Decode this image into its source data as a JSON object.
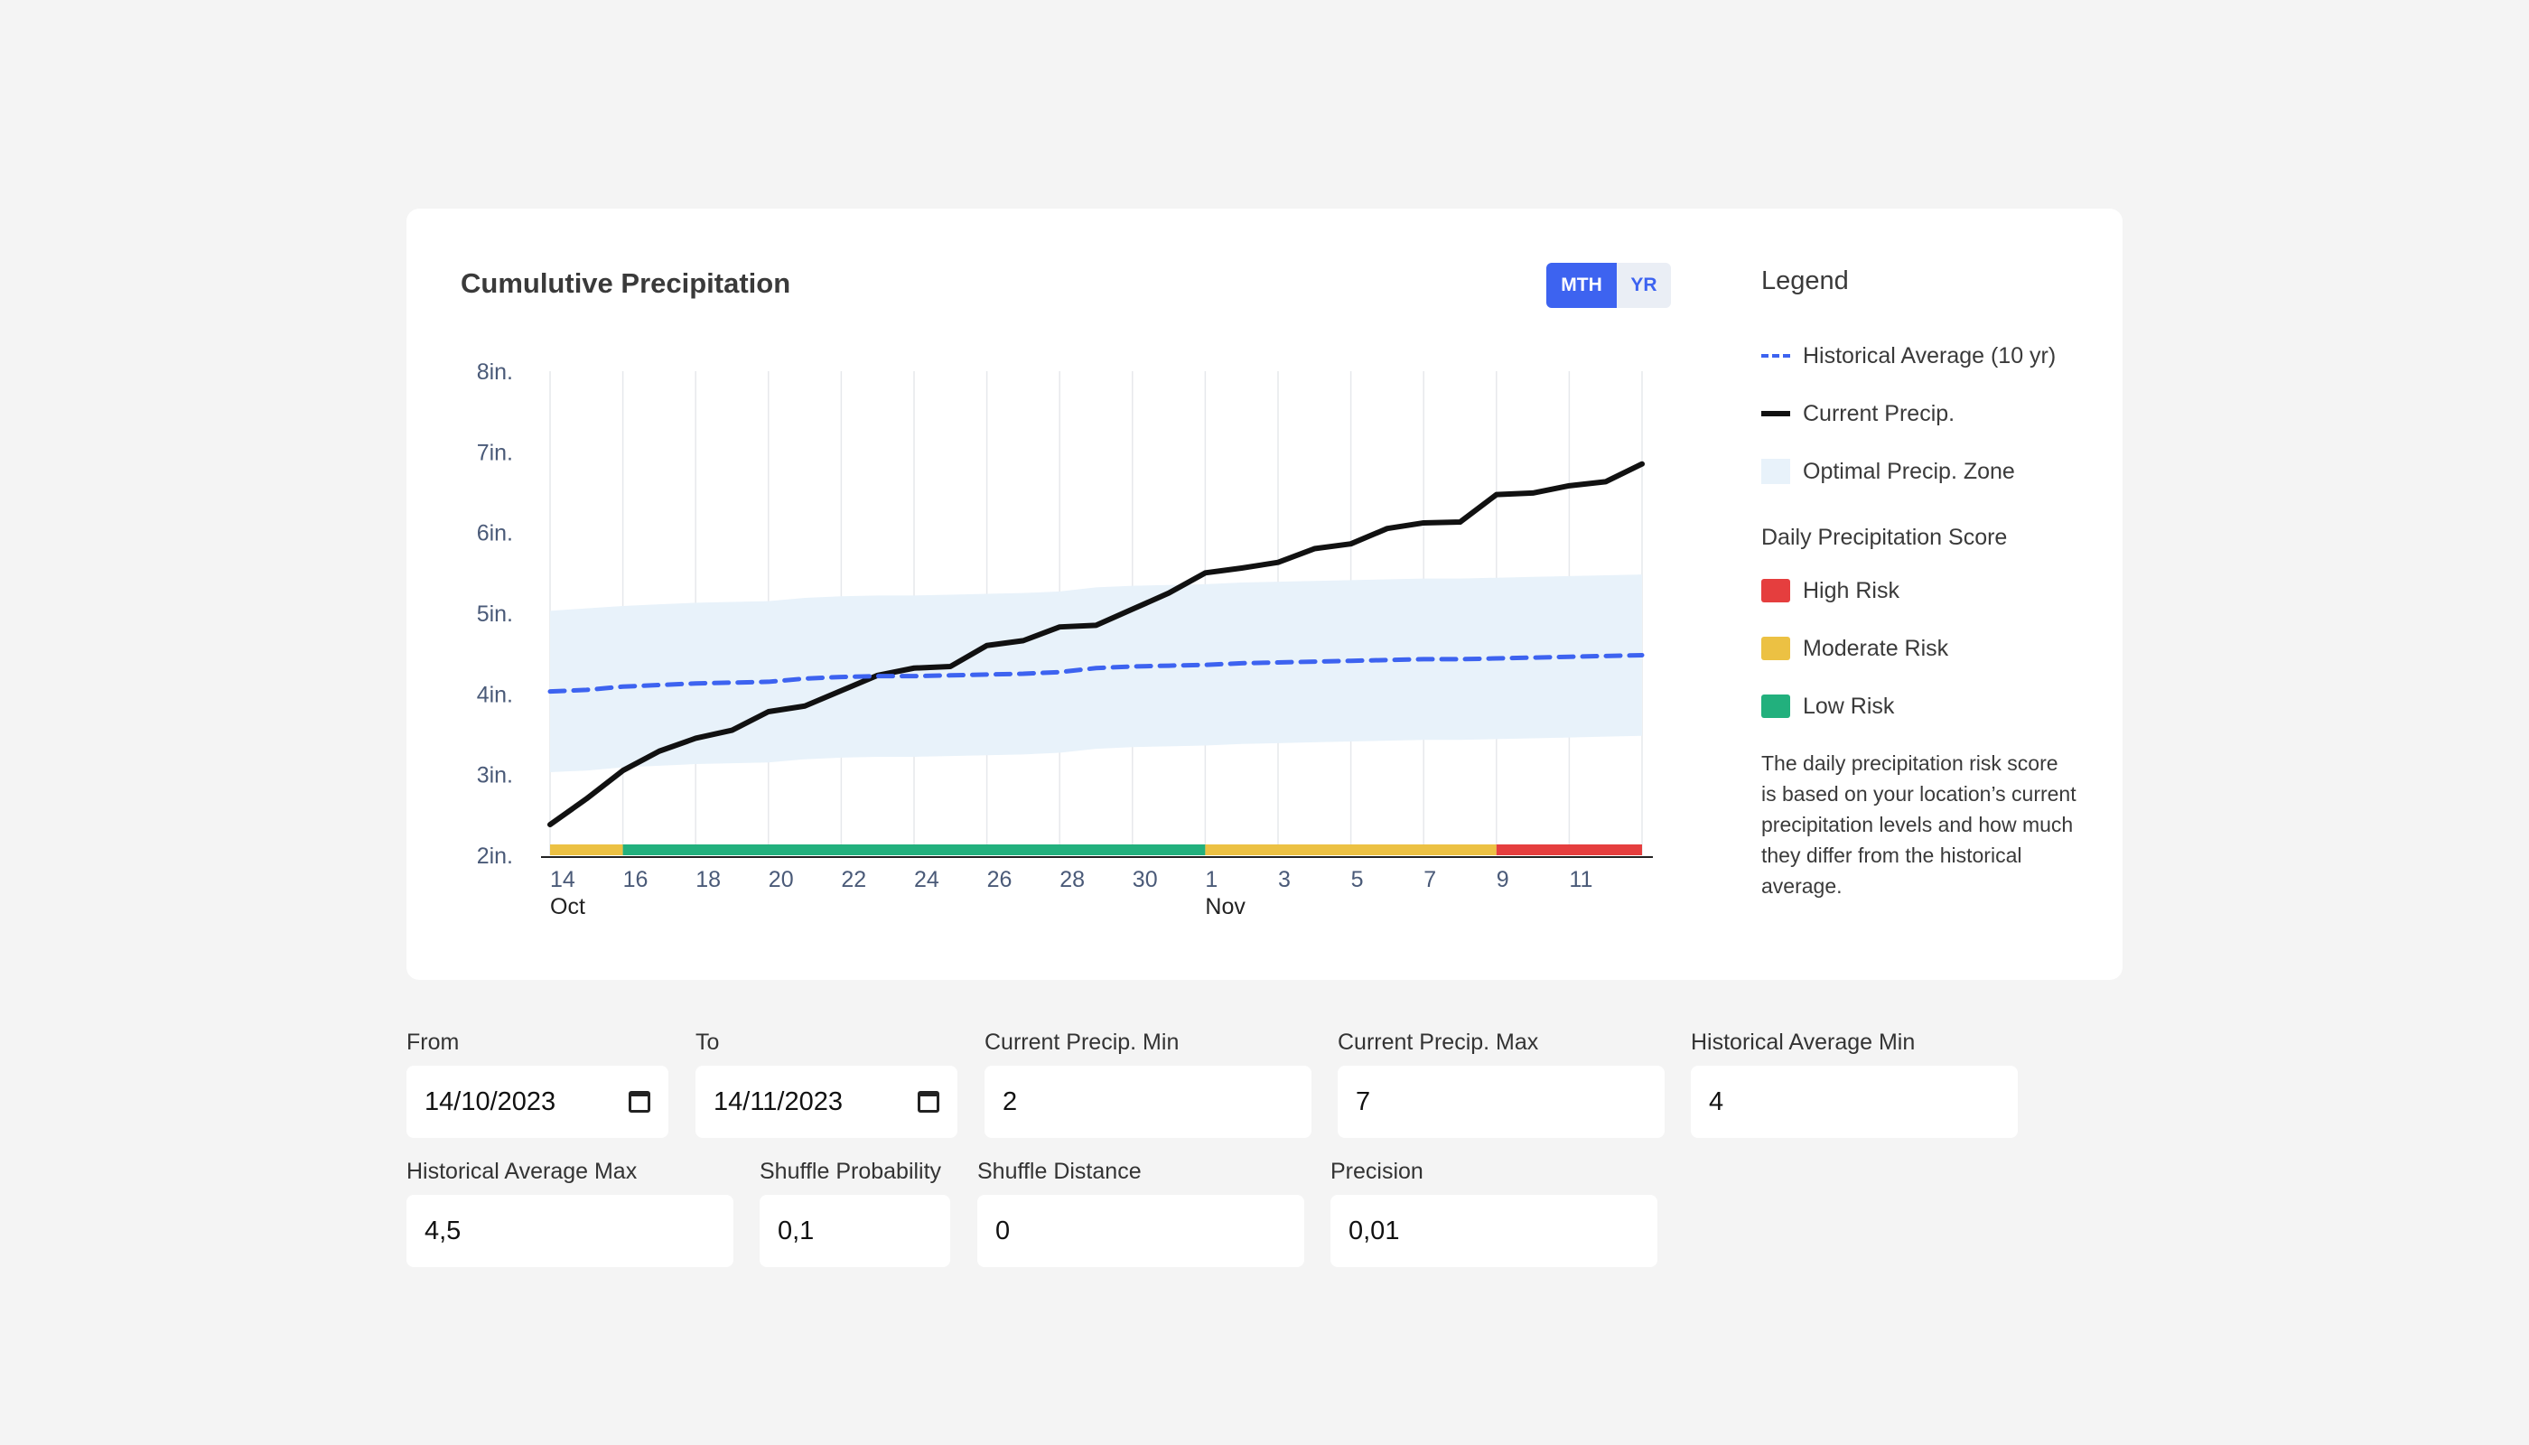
{
  "chart_panel": {
    "title": "Cumulutive Precipitation",
    "toggle": {
      "mth_label": "MTH",
      "yr_label": "YR",
      "active": "MTH"
    }
  },
  "legend": {
    "title": "Legend",
    "items": [
      {
        "label": "Historical Average (10 yr)",
        "icon": "dashed-line"
      },
      {
        "label": "Current Precip.",
        "icon": "solid-line"
      },
      {
        "label": "Optimal Precip. Zone",
        "icon": "zone-swatch"
      }
    ],
    "score_title": "Daily Precipitation Score",
    "score_items": [
      {
        "label": "High Risk",
        "color": "#e53e3e"
      },
      {
        "label": "Moderate Risk",
        "color": "#ecc143"
      },
      {
        "label": "Low Risk",
        "color": "#22b07d"
      }
    ],
    "description": "The daily precipitation risk score is based on your location’s current precipitation levels and how much they differ from the historical average."
  },
  "chart_data": {
    "type": "line",
    "title": "Cumulutive Precipitation",
    "xlabel": "",
    "ylabel": "",
    "ylim": [
      2,
      8
    ],
    "y_tick_labels": [
      "2in.",
      "3in.",
      "4in.",
      "5in.",
      "6in.",
      "7in.",
      "8in."
    ],
    "x_tick_labels": [
      "14",
      "16",
      "18",
      "20",
      "22",
      "24",
      "26",
      "28",
      "30",
      "1",
      "3",
      "5",
      "7",
      "9",
      "11"
    ],
    "x_month_labels": [
      "Oct",
      "Nov"
    ],
    "dates": [
      "2023-10-14",
      "2023-10-15",
      "2023-10-16",
      "2023-10-17",
      "2023-10-18",
      "2023-10-19",
      "2023-10-20",
      "2023-10-21",
      "2023-10-22",
      "2023-10-23",
      "2023-10-24",
      "2023-10-25",
      "2023-10-26",
      "2023-10-27",
      "2023-10-28",
      "2023-10-29",
      "2023-10-30",
      "2023-10-31",
      "2023-11-01",
      "2023-11-02",
      "2023-11-03",
      "2023-11-04",
      "2023-11-05",
      "2023-11-06",
      "2023-11-07",
      "2023-11-08",
      "2023-11-09",
      "2023-11-10",
      "2023-11-11",
      "2023-11-12",
      "2023-11-13"
    ],
    "series": [
      {
        "name": "Current Precip.",
        "color": "#111111",
        "values": [
          2.38,
          2.7,
          3.05,
          3.29,
          3.45,
          3.55,
          3.78,
          3.85,
          4.04,
          4.23,
          4.32,
          4.34,
          4.6,
          4.66,
          4.83,
          4.85,
          5.05,
          5.25,
          5.5,
          5.56,
          5.63,
          5.8,
          5.86,
          6.05,
          6.12,
          6.13,
          6.47,
          6.49,
          6.58,
          6.63,
          6.85
        ]
      },
      {
        "name": "Historical Average (10 yr)",
        "color": "#3d63f0",
        "style": "dashed",
        "values": [
          4.03,
          4.05,
          4.09,
          4.11,
          4.13,
          4.14,
          4.15,
          4.19,
          4.21,
          4.22,
          4.22,
          4.23,
          4.24,
          4.25,
          4.27,
          4.32,
          4.34,
          4.35,
          4.36,
          4.38,
          4.39,
          4.4,
          4.41,
          4.42,
          4.43,
          4.43,
          4.44,
          4.45,
          4.46,
          4.47,
          4.48
        ]
      }
    ],
    "band": {
      "name": "Optimal Precip. Zone",
      "color": "#e8f2fa",
      "upper": [
        5.03,
        5.06,
        5.09,
        5.11,
        5.13,
        5.14,
        5.15,
        5.19,
        5.21,
        5.22,
        5.22,
        5.23,
        5.24,
        5.25,
        5.27,
        5.32,
        5.34,
        5.35,
        5.36,
        5.38,
        5.39,
        5.4,
        5.41,
        5.42,
        5.43,
        5.43,
        5.44,
        5.45,
        5.46,
        5.47,
        5.48
      ],
      "lower": [
        3.03,
        3.05,
        3.09,
        3.11,
        3.13,
        3.14,
        3.15,
        3.19,
        3.21,
        3.22,
        3.22,
        3.23,
        3.24,
        3.25,
        3.27,
        3.32,
        3.34,
        3.35,
        3.36,
        3.38,
        3.39,
        3.4,
        3.41,
        3.42,
        3.43,
        3.43,
        3.44,
        3.45,
        3.46,
        3.47,
        3.48
      ]
    },
    "score_segments": [
      {
        "from": "2023-10-14",
        "to": "2023-10-16",
        "risk": "Moderate Risk",
        "color": "#ecc143"
      },
      {
        "from": "2023-10-16",
        "to": "2023-11-01",
        "risk": "Low Risk",
        "color": "#22b07d"
      },
      {
        "from": "2023-11-01",
        "to": "2023-11-09",
        "risk": "Moderate Risk",
        "color": "#ecc143"
      },
      {
        "from": "2023-11-09",
        "to": "2023-11-13",
        "risk": "High Risk",
        "color": "#e53e3e"
      }
    ],
    "grid": true
  },
  "form": {
    "from": {
      "label": "From",
      "value": "14/10/2023"
    },
    "to": {
      "label": "To",
      "value": "14/11/2023"
    },
    "current_min": {
      "label": "Current Precip. Min",
      "value": "2"
    },
    "current_max": {
      "label": "Current Precip. Max",
      "value": "7"
    },
    "hist_min": {
      "label": "Historical Average Min",
      "value": "4"
    },
    "hist_max": {
      "label": "Historical Average Max",
      "value": "4,5"
    },
    "shuffle_prob": {
      "label": "Shuffle Probability",
      "value": "0,1"
    },
    "shuffle_dist": {
      "label": "Shuffle Distance",
      "value": "0"
    },
    "precision": {
      "label": "Precision",
      "value": "0,01"
    }
  }
}
